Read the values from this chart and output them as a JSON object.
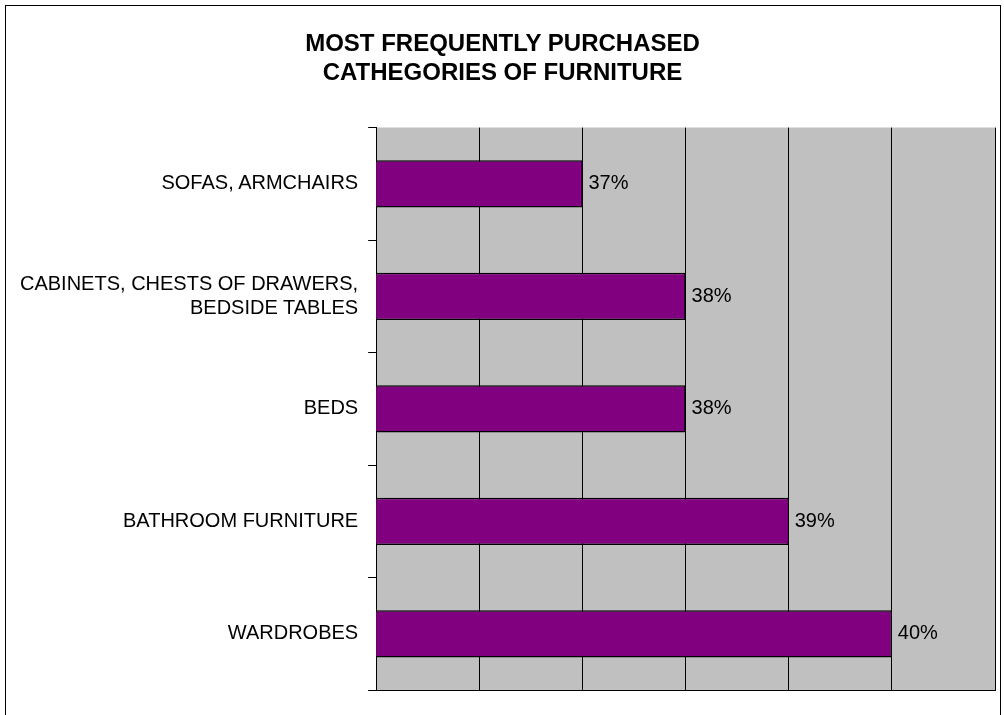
{
  "chart_data": {
    "type": "bar",
    "orientation": "horizontal",
    "title": "MOST FREQUENTLY PURCHASED\nCATHEGORIES OF FURNITURE",
    "categories": [
      "SOFAS, ARMCHAIRS",
      "CABINETS, CHESTS OF DRAWERS, BEDSIDE TABLES",
      "BEDS",
      "BATHROOM FURNITURE",
      "WARDROBES"
    ],
    "values": [
      37,
      38,
      38,
      39,
      40
    ],
    "value_labels": [
      "37%",
      "38%",
      "38%",
      "39%",
      "40%"
    ],
    "color": "#800080",
    "xlim": [
      35,
      41
    ],
    "xticks": [
      {
        "value": 35,
        "label": null
      },
      {
        "value": 36,
        "label": null
      },
      {
        "value": 37,
        "label": null
      },
      {
        "value": 38,
        "label": null
      },
      {
        "value": 39,
        "label": null
      },
      {
        "value": 40,
        "label": null
      },
      {
        "value": 41,
        "label": null
      }
    ],
    "grid": "x",
    "tick_labels": "y"
  }
}
